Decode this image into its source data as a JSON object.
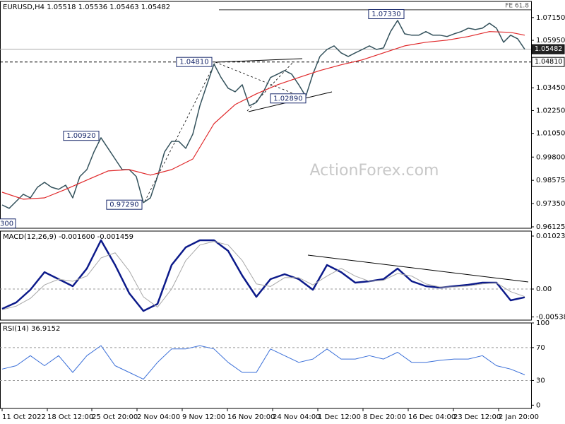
{
  "chart_data": [
    {
      "type": "line",
      "title": "EURUSD,H4  1.05518 1.05536 1.05463 1.05482",
      "watermark": "ActionForex.com",
      "xlim": [
        -0.3,
        74.9
      ],
      "ylim": [
        0.9605,
        1.08
      ],
      "yticks": [
        {
          "value": 1.0715,
          "label": "1.07150"
        },
        {
          "value": 1.0595,
          "label": "1.05950"
        },
        {
          "value": 1.0345,
          "label": "1.03450"
        },
        {
          "value": 1.0225,
          "label": "1.02250"
        },
        {
          "value": 1.0105,
          "label": "1.01050"
        },
        {
          "value": 0.998,
          "label": "0.99800"
        },
        {
          "value": 0.98575,
          "label": "0.98575"
        },
        {
          "value": 0.9735,
          "label": "0.97350"
        },
        {
          "value": 0.96125,
          "label": "0.96125"
        }
      ],
      "series": [
        {
          "color": "#34525c",
          "width": 1.5,
          "x": [
            0,
            1,
            2,
            3,
            4,
            5,
            6,
            7,
            8,
            9,
            10,
            11,
            12,
            13,
            14,
            15,
            16,
            17,
            18,
            19,
            20,
            21,
            22,
            23,
            24,
            25,
            26,
            27,
            28,
            29,
            30,
            31,
            32,
            33,
            34,
            35,
            36,
            37,
            38,
            39,
            40,
            41,
            42,
            43,
            44,
            45,
            46,
            47,
            48,
            49,
            50,
            51,
            52,
            53,
            54,
            55,
            56,
            57,
            58,
            59,
            60,
            61,
            62,
            63,
            64,
            65,
            66,
            67,
            68,
            69,
            70,
            71,
            72,
            73,
            74
          ],
          "values": [
            0.9728,
            0.971,
            0.9747,
            0.9784,
            0.9765,
            0.9821,
            0.9847,
            0.9821,
            0.981,
            0.9832,
            0.9765,
            0.9877,
            0.9914,
            1.0007,
            1.0082,
            1.0026,
            0.997,
            0.9914,
            0.9914,
            0.9877,
            0.974,
            0.9765,
            0.9877,
            1.0007,
            1.0063,
            1.0063,
            1.0026,
            1.0101,
            1.025,
            1.0361,
            1.047,
            1.0399,
            1.0343,
            1.0324,
            1.0361,
            1.025,
            1.0268,
            1.0324,
            1.0399,
            1.0417,
            1.0436,
            1.0417,
            1.0361,
            1.03,
            1.0417,
            1.051,
            1.0547,
            1.0566,
            1.0529,
            1.051,
            1.0529,
            1.0547,
            1.0566,
            1.0547,
            1.0555,
            1.0641,
            1.07,
            1.0629,
            1.0622,
            1.0622,
            1.0641,
            1.0622,
            1.0622,
            1.0615,
            1.0629,
            1.0641,
            1.0659,
            1.0652,
            1.0659,
            1.0685,
            1.0659,
            1.0585,
            1.0622,
            1.0603,
            1.0548
          ]
        },
        {
          "color": "#e0282a",
          "width": 1.2,
          "x": [
            0,
            3,
            6,
            9,
            12,
            15,
            18,
            21,
            24,
            27,
            30,
            33,
            36,
            39,
            42,
            45,
            48,
            51,
            54,
            57,
            60,
            63,
            66,
            69,
            72,
            74
          ],
          "values": [
            0.9795,
            0.9758,
            0.9765,
            0.981,
            0.9859,
            0.9907,
            0.9914,
            0.9885,
            0.9914,
            0.997,
            1.0156,
            1.0257,
            1.0313,
            1.0361,
            1.0399,
            1.0436,
            1.0466,
            1.0492,
            1.0529,
            1.0566,
            1.0585,
            1.0596,
            1.0615,
            1.0641,
            1.0637,
            1.0622
          ]
        }
      ],
      "annotations": [
        {
          "value": 1.0733,
          "label": "1.07330",
          "x": 56.9
        },
        {
          "value": 1.0481,
          "label": "1.04810",
          "x": 29.7
        },
        {
          "value": 1.0289,
          "label": "1.02890",
          "x": 43
        },
        {
          "value": 1.0092,
          "label": "1.00920",
          "x": 13.7
        },
        {
          "value": 0.9729,
          "label": "0.97290",
          "x": 19.8
        },
        {
          "value": 0.963,
          "label": "300",
          "x": 1.9
        }
      ],
      "price_tags": [
        {
          "value": 1.05482,
          "label": "1.05482",
          "style": "current"
        },
        {
          "value": 1.0481,
          "label": "1.04810",
          "style": "level"
        }
      ],
      "levels": [
        {
          "value": 1.0756,
          "label": "FE 61.8"
        }
      ]
    },
    {
      "type": "line",
      "title": "MACD(12,26,9) -0.001600 -0.001459",
      "xlim": [
        -0.3,
        74.9
      ],
      "ylim": [
        -0.006,
        0.01119
      ],
      "yticks": [
        0.010232,
        {
          "value": 0,
          "label": "0.00"
        },
        -0.005389
      ],
      "grid": "inner",
      "series": [
        {
          "color": "#0c1a8a",
          "width": 2.5,
          "x": [
            0,
            2,
            4,
            6,
            8,
            10,
            12,
            14,
            16,
            18,
            20,
            22,
            24,
            26,
            28,
            30,
            32,
            34,
            36,
            38,
            40,
            42,
            44,
            46,
            48,
            50,
            52,
            54,
            56,
            58,
            60,
            62,
            64,
            66,
            68,
            70,
            72,
            74
          ],
          "values": [
            -0.00382,
            -0.00259,
            -0.00014,
            0.00327,
            0.00191,
            0.00055,
            0.00396,
            0.00941,
            0.00464,
            -0.00082,
            -0.00423,
            -0.00287,
            0.00464,
            0.00805,
            0.00941,
            0.00941,
            0.00737,
            0.00259,
            -0.0015,
            0.00191,
            0.00287,
            0.00191,
            -0.00014,
            0.00464,
            0.00327,
            0.00123,
            0.0015,
            0.00191,
            0.00396,
            0.0015,
            0.00055,
            0.00027,
            0.00055,
            0.00082,
            0.00123,
            0.00123,
            -0.00218,
            -0.0016
          ]
        },
        {
          "color": "#a8a8a8",
          "width": 1,
          "x": [
            0,
            2,
            4,
            6,
            8,
            10,
            12,
            14,
            16,
            18,
            20,
            22,
            24,
            26,
            28,
            30,
            32,
            34,
            36,
            38,
            40,
            42,
            44,
            46,
            48,
            50,
            52,
            54,
            56,
            58,
            60,
            62,
            64,
            66,
            68,
            70,
            72,
            74
          ],
          "values": [
            -0.004,
            -0.0033,
            -0.0018,
            0.0008,
            0.0019,
            0.0015,
            0.0025,
            0.006,
            0.007,
            0.0035,
            -0.0015,
            -0.0035,
            0,
            0.0055,
            0.0085,
            0.0092,
            0.0085,
            0.0055,
            0.001,
            0.0005,
            0.0022,
            0.0022,
            0.0008,
            0.0025,
            0.004,
            0.0025,
            0.0015,
            0.0017,
            0.003,
            0.0025,
            0.001,
            0.0004,
            0.0004,
            0.0006,
            0.001,
            0.0012,
            -0.0005,
            -0.001459
          ]
        }
      ]
    },
    {
      "type": "line",
      "title": "RSI(14) 36.9152",
      "xlim": [
        -0.3,
        74.9
      ],
      "ylim": [
        -4,
        100
      ],
      "yticks": [
        100,
        70,
        30,
        0
      ],
      "grid": "inner",
      "xticks": [
        {
          "value": 0,
          "label": "11 Oct 2022"
        },
        {
          "value": 6.4,
          "label": "18 Oct 12:00"
        },
        {
          "value": 12.7,
          "label": "25 Oct 20:00"
        },
        {
          "value": 19.1,
          "label": "2 Nov 04:00"
        },
        {
          "value": 25.5,
          "label": "9 Nov 12:00"
        },
        {
          "value": 31.9,
          "label": "16 Nov 20:00"
        },
        {
          "value": 38.3,
          "label": "24 Nov 04:00"
        },
        {
          "value": 44.7,
          "label": "1 Dec 12:00"
        },
        {
          "value": 51.1,
          "label": "8 Dec 20:00"
        },
        {
          "value": 57.5,
          "label": "16 Dec 04:00"
        },
        {
          "value": 63.9,
          "label": "23 Dec 12:00"
        },
        {
          "value": 70.3,
          "label": "2 Jan 20:00"
        }
      ],
      "series": [
        {
          "color": "#3a6fd8",
          "width": 1,
          "x": [
            0,
            2,
            4,
            6,
            8,
            10,
            12,
            14,
            16,
            18,
            20,
            22,
            24,
            26,
            28,
            30,
            32,
            34,
            36,
            38,
            40,
            42,
            44,
            46,
            48,
            50,
            52,
            54,
            56,
            58,
            60,
            62,
            64,
            66,
            68,
            70,
            72,
            74
          ],
          "values": [
            43.9,
            48,
            60.2,
            48,
            60.2,
            39.8,
            60.2,
            72.4,
            48,
            39.8,
            31.6,
            52,
            68.4,
            68.4,
            72.4,
            68.4,
            52,
            39.8,
            39.8,
            68.4,
            60.2,
            52,
            56.1,
            68.4,
            56.1,
            56.1,
            60.2,
            56.1,
            64.3,
            52,
            52,
            54.5,
            56.1,
            56.1,
            60.2,
            48,
            43.9,
            36.9
          ]
        }
      ]
    }
  ]
}
